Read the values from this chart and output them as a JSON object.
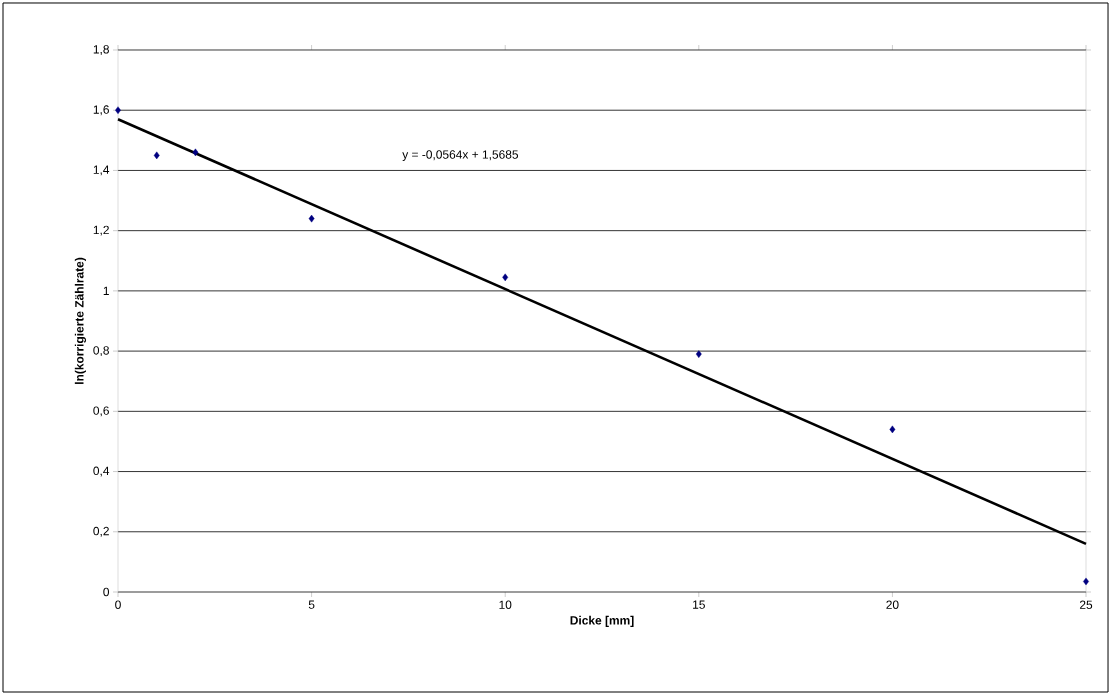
{
  "chart_data": {
    "type": "scatter",
    "xlabel": "Dicke [mm]",
    "ylabel": "ln(korrigierte Zählrate)",
    "annotations": [
      "y = -0,0564x + 1,5685"
    ],
    "series": [
      {
        "color": "#000080",
        "marker": "diamond",
        "x": [
          0,
          1,
          2,
          5,
          10,
          15,
          20,
          25
        ],
        "values": [
          1.6,
          1.45,
          1.46,
          1.24,
          1.045,
          0.79,
          0.54,
          0.035
        ]
      },
      {
        "type": "line",
        "color": "#000000",
        "marker": "none",
        "line_style": "solid",
        "x": [
          0,
          25
        ],
        "values": [
          1.57,
          0.16
        ]
      }
    ],
    "xlim": [
      0,
      25
    ],
    "ylim": [
      0,
      1.8
    ],
    "xticks": [
      0,
      5,
      10,
      15,
      20,
      25
    ],
    "yticks": [
      {
        "value": 0,
        "label": "0"
      },
      {
        "value": 0.2,
        "label": "0,2"
      },
      {
        "value": 0.4,
        "label": "0,4"
      },
      {
        "value": 0.6,
        "label": "0,6"
      },
      {
        "value": 0.8,
        "label": "0,8"
      },
      {
        "value": 1,
        "label": "1"
      },
      {
        "value": 1.2,
        "label": "1,2"
      },
      {
        "value": 1.4,
        "label": "1,4"
      },
      {
        "value": 1.6,
        "label": "1,6"
      },
      {
        "value": 1.8,
        "label": "1,8"
      }
    ],
    "grid": "y"
  }
}
